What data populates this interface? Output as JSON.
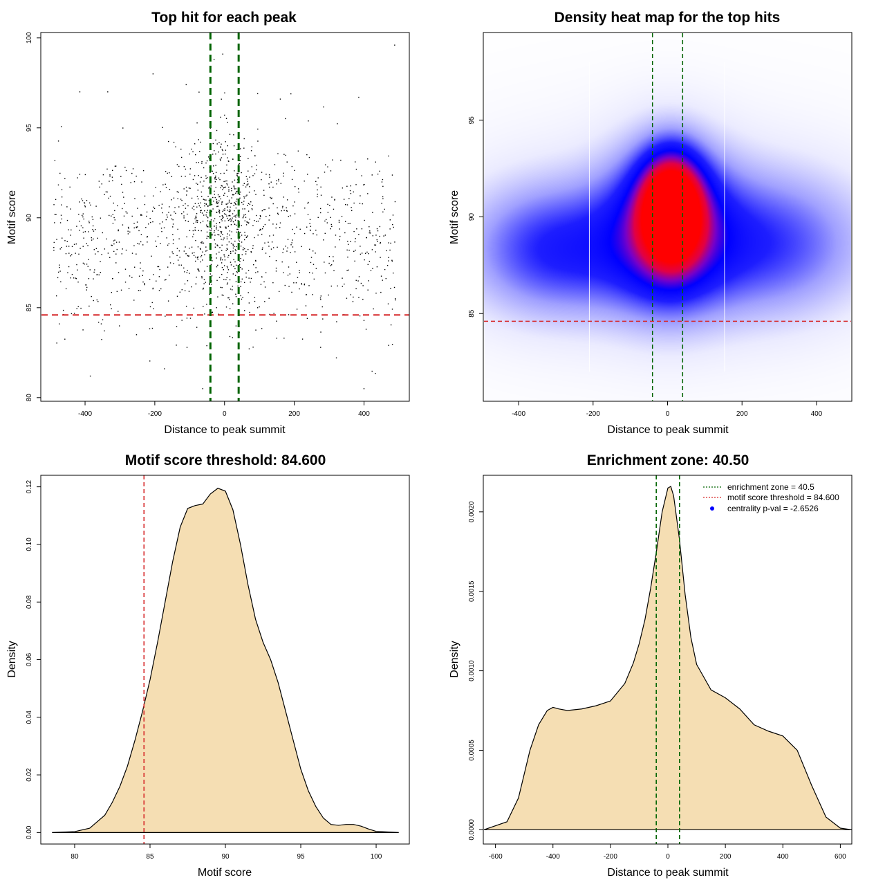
{
  "figure": {
    "colors": {
      "fill": "#f5deb3",
      "threshold": "#d62728",
      "zone": "#006400",
      "points": "#000000",
      "heat_low": "#ffffff",
      "heat_mid": "#0000ff",
      "heat_high": "#ff0000"
    }
  },
  "chart_data": [
    {
      "id": "scatter",
      "type": "scatter",
      "title": "Top hit for each peak",
      "xlabel": "Distance to peak summit",
      "ylabel": "Motif score",
      "xlim": [
        -525,
        530
      ],
      "ylim": [
        79.8,
        100.3
      ],
      "xticks": [
        -400,
        -200,
        0,
        200,
        400
      ],
      "yticks": [
        80,
        85,
        90,
        95,
        100
      ],
      "hline": 84.6,
      "vlines": [
        -40.5,
        40.5
      ],
      "n_points": 1500,
      "point_model": {
        "x_mix": [
          {
            "weight": 0.35,
            "mean": 0,
            "sd": 60
          },
          {
            "weight": 0.65,
            "min": -490,
            "max": 490
          }
        ],
        "y_center": [
          {
            "x": -500,
            "y": 88.5
          },
          {
            "x": -200,
            "y": 89.0
          },
          {
            "x": 0,
            "y": 90.2
          },
          {
            "x": 200,
            "y": 89.0
          },
          {
            "x": 500,
            "y": 88.5
          }
        ],
        "y_sd": 2.5,
        "y_range": [
          80.5,
          99.7
        ]
      },
      "outliers": [
        {
          "x": -5,
          "y": 99.1
        },
        {
          "x": -30,
          "y": 98.8
        },
        {
          "x": -205,
          "y": 98.0
        },
        {
          "x": 488,
          "y": 99.6
        },
        {
          "x": 400,
          "y": 80.5
        },
        {
          "x": -385,
          "y": 81.2
        },
        {
          "x": -415,
          "y": 97.0
        },
        {
          "x": -335,
          "y": 97.0
        },
        {
          "x": 160,
          "y": 96.6
        },
        {
          "x": 385,
          "y": 96.7
        },
        {
          "x": 95,
          "y": 96.9
        },
        {
          "x": -110,
          "y": 97.4
        }
      ]
    },
    {
      "id": "heatmap",
      "type": "heatmap",
      "title": "Density heat map for the top hits",
      "xlabel": "Distance to peak summit",
      "ylabel": "Motif score",
      "xlim": [
        -493,
        493
      ],
      "ylim": [
        80.5,
        99.5
      ],
      "xticks": [
        -400,
        -200,
        0,
        200,
        400
      ],
      "yticks": [
        85,
        90,
        95
      ],
      "hline": 84.6,
      "vlines": [
        -40.5,
        40.5
      ],
      "white_vlines": [
        -210,
        153
      ],
      "density_components": [
        {
          "x": 10,
          "y": 90.4,
          "sx": 55,
          "sy": 1.8,
          "w": 1.0
        },
        {
          "x": 0,
          "y": 89.6,
          "sx": 110,
          "sy": 3.0,
          "w": 0.48
        },
        {
          "x": -300,
          "y": 88.3,
          "sx": 170,
          "sy": 2.4,
          "w": 0.34
        },
        {
          "x": 260,
          "y": 88.6,
          "sx": 190,
          "sy": 2.6,
          "w": 0.3
        },
        {
          "x": 0,
          "y": 89.0,
          "sx": 450,
          "sy": 4.5,
          "w": 0.12
        }
      ]
    },
    {
      "id": "score_density",
      "type": "area",
      "title": "Motif score threshold: 84.600",
      "xlabel": "Motif score",
      "ylabel": "Density",
      "xlim": [
        77.8,
        102.2
      ],
      "ylim": [
        -0.004,
        0.124
      ],
      "xticks": [
        80,
        85,
        90,
        95,
        100
      ],
      "yticks": [
        0.0,
        0.02,
        0.04,
        0.06,
        0.08,
        0.1,
        0.12
      ],
      "ytick_labels": [
        "0.00",
        "0.02",
        "0.04",
        "0.06",
        "0.08",
        "0.10",
        "0.12"
      ],
      "vline": 84.6,
      "x": [
        78.5,
        80.0,
        81.0,
        82.0,
        82.5,
        83.0,
        83.5,
        84.0,
        84.5,
        85.0,
        85.5,
        86.0,
        86.5,
        87.0,
        87.5,
        88.0,
        88.5,
        89.0,
        89.5,
        90.0,
        90.5,
        91.0,
        91.5,
        92.0,
        92.5,
        93.0,
        93.5,
        94.0,
        94.5,
        95.0,
        95.5,
        96.0,
        96.5,
        97.0,
        97.5,
        98.0,
        98.5,
        99.0,
        99.5,
        100.0,
        101.5
      ],
      "y": [
        0.0,
        0.0003,
        0.0015,
        0.006,
        0.0105,
        0.016,
        0.023,
        0.032,
        0.042,
        0.053,
        0.066,
        0.08,
        0.094,
        0.106,
        0.1125,
        0.1135,
        0.114,
        0.1175,
        0.1195,
        0.1185,
        0.112,
        0.1,
        0.086,
        0.074,
        0.066,
        0.06,
        0.052,
        0.042,
        0.032,
        0.022,
        0.0145,
        0.009,
        0.005,
        0.0028,
        0.0025,
        0.0028,
        0.0028,
        0.0022,
        0.0012,
        0.0004,
        0.0
      ]
    },
    {
      "id": "distance_density",
      "type": "area",
      "title": "Enrichment zone: 40.50",
      "xlabel": "Distance to peak summit",
      "ylabel": "Density",
      "xlim": [
        -640,
        640
      ],
      "ylim": [
        -9e-05,
        0.00223
      ],
      "xticks": [
        -600,
        -400,
        -200,
        0,
        200,
        400,
        600
      ],
      "yticks": [
        0.0,
        0.0005,
        0.001,
        0.0015,
        0.002
      ],
      "ytick_labels": [
        "0.0000",
        "0.0005",
        "0.0010",
        "0.0015",
        "0.0020"
      ],
      "vlines": [
        -40.5,
        40.5
      ],
      "x": [
        -640,
        -560,
        -520,
        -480,
        -450,
        -420,
        -400,
        -380,
        -350,
        -300,
        -250,
        -200,
        -150,
        -120,
        -100,
        -80,
        -60,
        -40,
        -20,
        0,
        10,
        20,
        40,
        60,
        80,
        100,
        150,
        200,
        250,
        300,
        350,
        400,
        450,
        500,
        550,
        600,
        640
      ],
      "y": [
        0.0,
        5e-05,
        0.0002,
        0.0005,
        0.00066,
        0.00075,
        0.00077,
        0.00076,
        0.00075,
        0.00076,
        0.00078,
        0.00081,
        0.00092,
        0.00105,
        0.00117,
        0.00132,
        0.00152,
        0.00175,
        0.002,
        0.00215,
        0.00216,
        0.0021,
        0.00183,
        0.00148,
        0.00121,
        0.00104,
        0.00088,
        0.00083,
        0.00076,
        0.00066,
        0.00062,
        0.00059,
        0.0005,
        0.00028,
        8e-05,
        1e-05,
        0.0
      ]
    }
  ],
  "legend": {
    "entries": [
      {
        "label": "enrichment zone = 40.5",
        "style": "dotted-line",
        "color": "#006400"
      },
      {
        "label": "motif score threshold = 84.600",
        "style": "dotted-line",
        "color": "#d62728"
      },
      {
        "label": "centrality p-val = -2.6526",
        "style": "dot",
        "color": "#0000ff"
      }
    ]
  }
}
